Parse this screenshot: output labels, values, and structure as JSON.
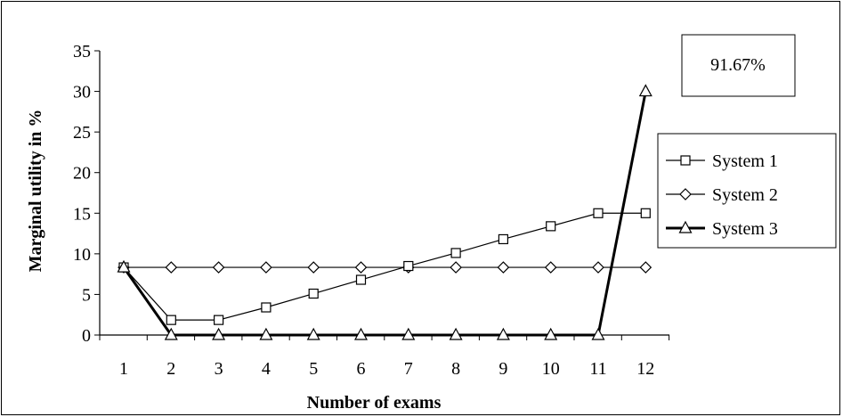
{
  "chart_data": {
    "type": "line",
    "title": "",
    "xlabel": "Number of exams",
    "ylabel": "Marginal utility in %",
    "categories": [
      "1",
      "2",
      "3",
      "4",
      "5",
      "6",
      "7",
      "8",
      "9",
      "10",
      "11",
      "12"
    ],
    "ylim": [
      0,
      35
    ],
    "yticks": [
      "0",
      "5",
      "10",
      "15",
      "20",
      "25",
      "30",
      "35"
    ],
    "grid": false,
    "legend_position": "right",
    "annotation": "91.67%",
    "series": [
      {
        "name": "System 1",
        "marker": "square",
        "line": "thin",
        "values": [
          8.33,
          1.85,
          1.85,
          3.4,
          5.1,
          6.8,
          8.5,
          10.1,
          11.8,
          13.4,
          15.0,
          15.0
        ]
      },
      {
        "name": "System 2",
        "marker": "diamond",
        "line": "thin",
        "values": [
          8.33,
          8.33,
          8.33,
          8.33,
          8.33,
          8.33,
          8.33,
          8.33,
          8.33,
          8.33,
          8.33,
          8.33
        ]
      },
      {
        "name": "System 3",
        "marker": "triangle",
        "line": "thick",
        "values": [
          8.33,
          0,
          0,
          0,
          0,
          0,
          0,
          0,
          0,
          0,
          0,
          30.0
        ]
      }
    ]
  }
}
